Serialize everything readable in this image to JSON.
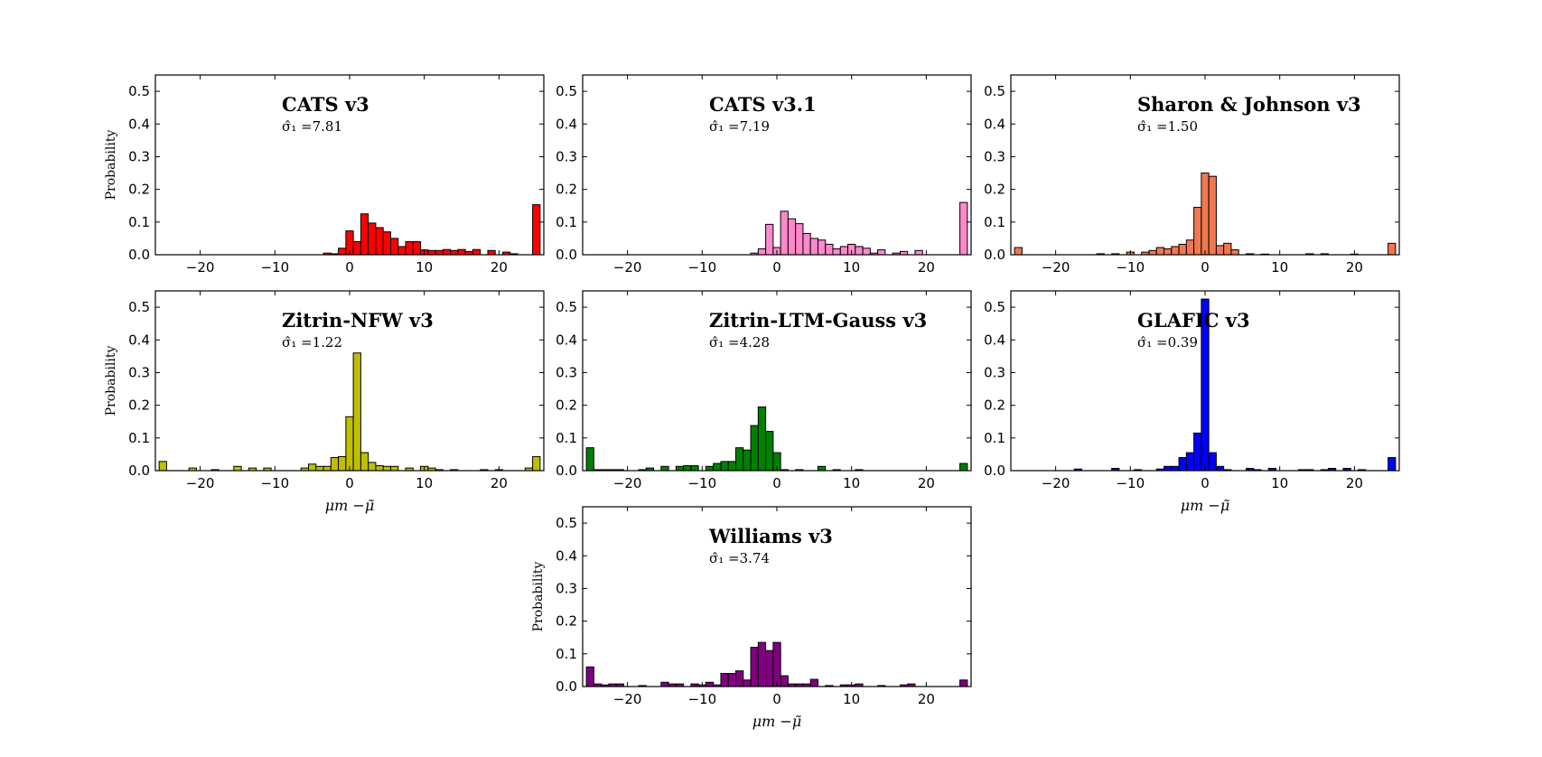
{
  "figure": {
    "background": "#ffffff"
  },
  "chart_data": [
    {
      "type": "bar",
      "title": "CATS v3",
      "annotation": "σ̂₁ =7.81",
      "ylabel": "Probability",
      "xlabel": "",
      "color": "#ff0000",
      "xlim": [
        -26,
        26
      ],
      "ylim": [
        0,
        0.55
      ],
      "xticks": [
        -20,
        -10,
        0,
        10,
        20
      ],
      "yticks": [
        0.0,
        0.1,
        0.2,
        0.3,
        0.4,
        0.5
      ],
      "bins": [
        {
          "x": -3,
          "y": 0.005
        },
        {
          "x": -2,
          "y": 0.003
        },
        {
          "x": -1,
          "y": 0.02
        },
        {
          "x": 0,
          "y": 0.073
        },
        {
          "x": 1,
          "y": 0.04
        },
        {
          "x": 2,
          "y": 0.125
        },
        {
          "x": 3,
          "y": 0.097
        },
        {
          "x": 4,
          "y": 0.083
        },
        {
          "x": 5,
          "y": 0.07
        },
        {
          "x": 6,
          "y": 0.05
        },
        {
          "x": 7,
          "y": 0.025
        },
        {
          "x": 8,
          "y": 0.04
        },
        {
          "x": 9,
          "y": 0.04
        },
        {
          "x": 10,
          "y": 0.015
        },
        {
          "x": 11,
          "y": 0.013
        },
        {
          "x": 12,
          "y": 0.013
        },
        {
          "x": 13,
          "y": 0.016
        },
        {
          "x": 14,
          "y": 0.013
        },
        {
          "x": 15,
          "y": 0.016
        },
        {
          "x": 16,
          "y": 0.01
        },
        {
          "x": 17,
          "y": 0.016
        },
        {
          "x": 19,
          "y": 0.013
        },
        {
          "x": 21,
          "y": 0.008
        },
        {
          "x": 22,
          "y": 0.003
        },
        {
          "x": 25,
          "y": 0.153
        }
      ]
    },
    {
      "type": "bar",
      "title": "CATS v3.1",
      "annotation": "σ̂₁ =7.19",
      "ylabel": "",
      "xlabel": "",
      "color": "#ff88cc",
      "xlim": [
        -26,
        26
      ],
      "ylim": [
        0,
        0.55
      ],
      "xticks": [
        -20,
        -10,
        0,
        10,
        20
      ],
      "yticks": [
        0.0,
        0.1,
        0.2,
        0.3,
        0.4,
        0.5
      ],
      "bins": [
        {
          "x": -3,
          "y": 0.005
        },
        {
          "x": -2,
          "y": 0.018
        },
        {
          "x": -1,
          "y": 0.093
        },
        {
          "x": 0,
          "y": 0.022
        },
        {
          "x": 1,
          "y": 0.133
        },
        {
          "x": 2,
          "y": 0.11
        },
        {
          "x": 3,
          "y": 0.095
        },
        {
          "x": 4,
          "y": 0.065
        },
        {
          "x": 5,
          "y": 0.05
        },
        {
          "x": 6,
          "y": 0.045
        },
        {
          "x": 7,
          "y": 0.032
        },
        {
          "x": 8,
          "y": 0.018
        },
        {
          "x": 9,
          "y": 0.025
        },
        {
          "x": 10,
          "y": 0.032
        },
        {
          "x": 11,
          "y": 0.025
        },
        {
          "x": 12,
          "y": 0.02
        },
        {
          "x": 13,
          "y": 0.005
        },
        {
          "x": 14,
          "y": 0.015
        },
        {
          "x": 16,
          "y": 0.005
        },
        {
          "x": 17,
          "y": 0.01
        },
        {
          "x": 19,
          "y": 0.013
        },
        {
          "x": 25,
          "y": 0.16
        }
      ]
    },
    {
      "type": "bar",
      "title": "Sharon & Johnson v3",
      "annotation": "σ̂₁ =1.50",
      "ylabel": "",
      "xlabel": "",
      "color": "#f07850",
      "xlim": [
        -26,
        26
      ],
      "ylim": [
        0,
        0.55
      ],
      "xticks": [
        -20,
        -10,
        0,
        10,
        20
      ],
      "yticks": [
        0.0,
        0.1,
        0.2,
        0.3,
        0.4,
        0.5
      ],
      "bins": [
        {
          "x": -25,
          "y": 0.022
        },
        {
          "x": -14,
          "y": 0.003
        },
        {
          "x": -12,
          "y": 0.003
        },
        {
          "x": -10,
          "y": 0.008
        },
        {
          "x": -8,
          "y": 0.008
        },
        {
          "x": -7,
          "y": 0.013
        },
        {
          "x": -6,
          "y": 0.022
        },
        {
          "x": -5,
          "y": 0.018
        },
        {
          "x": -4,
          "y": 0.025
        },
        {
          "x": -3,
          "y": 0.032
        },
        {
          "x": -2,
          "y": 0.045
        },
        {
          "x": -1,
          "y": 0.145
        },
        {
          "x": 0,
          "y": 0.25
        },
        {
          "x": 1,
          "y": 0.24
        },
        {
          "x": 2,
          "y": 0.028
        },
        {
          "x": 3,
          "y": 0.035
        },
        {
          "x": 4,
          "y": 0.015
        },
        {
          "x": 6,
          "y": 0.003
        },
        {
          "x": 8,
          "y": 0.002
        },
        {
          "x": 14,
          "y": 0.003
        },
        {
          "x": 16,
          "y": 0.003
        },
        {
          "x": 20,
          "y": 0.002
        },
        {
          "x": 25,
          "y": 0.035
        }
      ]
    },
    {
      "type": "bar",
      "title": "Zitrin-NFW v3",
      "annotation": "σ̂₁ =1.22",
      "ylabel": "Probability",
      "xlabel": "μm −μ̃",
      "color": "#bfbf00",
      "xlim": [
        -26,
        26
      ],
      "ylim": [
        0,
        0.55
      ],
      "xticks": [
        -20,
        -10,
        0,
        10,
        20
      ],
      "yticks": [
        0.0,
        0.1,
        0.2,
        0.3,
        0.4,
        0.5
      ],
      "bins": [
        {
          "x": -25,
          "y": 0.028
        },
        {
          "x": -21,
          "y": 0.008
        },
        {
          "x": -18,
          "y": 0.003
        },
        {
          "x": -15,
          "y": 0.013
        },
        {
          "x": -13,
          "y": 0.008
        },
        {
          "x": -11,
          "y": 0.008
        },
        {
          "x": -6,
          "y": 0.008
        },
        {
          "x": -5,
          "y": 0.02
        },
        {
          "x": -4,
          "y": 0.013
        },
        {
          "x": -3,
          "y": 0.013
        },
        {
          "x": -2,
          "y": 0.04
        },
        {
          "x": -1,
          "y": 0.043
        },
        {
          "x": 0,
          "y": 0.165
        },
        {
          "x": 1,
          "y": 0.36
        },
        {
          "x": 2,
          "y": 0.055
        },
        {
          "x": 3,
          "y": 0.025
        },
        {
          "x": 4,
          "y": 0.015
        },
        {
          "x": 5,
          "y": 0.013
        },
        {
          "x": 6,
          "y": 0.013
        },
        {
          "x": 8,
          "y": 0.008
        },
        {
          "x": 10,
          "y": 0.013
        },
        {
          "x": 11,
          "y": 0.008
        },
        {
          "x": 12,
          "y": 0.003
        },
        {
          "x": 14,
          "y": 0.003
        },
        {
          "x": 18,
          "y": 0.003
        },
        {
          "x": 20,
          "y": 0.003
        },
        {
          "x": 24,
          "y": 0.008
        },
        {
          "x": 25,
          "y": 0.043
        }
      ]
    },
    {
      "type": "bar",
      "title": "Zitrin-LTM-Gauss v3",
      "annotation": "σ̂₁ =4.28",
      "ylabel": "",
      "xlabel": "",
      "color": "#008000",
      "xlim": [
        -26,
        26
      ],
      "ylim": [
        0,
        0.55
      ],
      "xticks": [
        -20,
        -10,
        0,
        10,
        20
      ],
      "yticks": [
        0.0,
        0.1,
        0.2,
        0.3,
        0.4,
        0.5
      ],
      "bins": [
        {
          "x": -25,
          "y": 0.07
        },
        {
          "x": -24,
          "y": 0.003
        },
        {
          "x": -23,
          "y": 0.003
        },
        {
          "x": -22,
          "y": 0.003
        },
        {
          "x": -21,
          "y": 0.003
        },
        {
          "x": -18,
          "y": 0.003
        },
        {
          "x": -17,
          "y": 0.008
        },
        {
          "x": -15,
          "y": 0.013
        },
        {
          "x": -13,
          "y": 0.013
        },
        {
          "x": -12,
          "y": 0.015
        },
        {
          "x": -11,
          "y": 0.015
        },
        {
          "x": -9,
          "y": 0.013
        },
        {
          "x": -8,
          "y": 0.022
        },
        {
          "x": -7,
          "y": 0.028
        },
        {
          "x": -6,
          "y": 0.028
        },
        {
          "x": -5,
          "y": 0.07
        },
        {
          "x": -4,
          "y": 0.063
        },
        {
          "x": -3,
          "y": 0.138
        },
        {
          "x": -2,
          "y": 0.195
        },
        {
          "x": -1,
          "y": 0.12
        },
        {
          "x": 0,
          "y": 0.055
        },
        {
          "x": 1,
          "y": 0.003
        },
        {
          "x": 3,
          "y": 0.003
        },
        {
          "x": 6,
          "y": 0.013
        },
        {
          "x": 8,
          "y": 0.003
        },
        {
          "x": 11,
          "y": 0.003
        },
        {
          "x": 25,
          "y": 0.022
        }
      ]
    },
    {
      "type": "bar",
      "title": "GLAFIC v3",
      "annotation": "σ̂₁ =0.39",
      "ylabel": "",
      "xlabel": "μm −μ̃",
      "color": "#0000ff",
      "xlim": [
        -26,
        26
      ],
      "ylim": [
        0,
        0.55
      ],
      "xticks": [
        -20,
        -10,
        0,
        10,
        20
      ],
      "yticks": [
        0.0,
        0.1,
        0.2,
        0.3,
        0.4,
        0.5
      ],
      "bins": [
        {
          "x": -17,
          "y": 0.005
        },
        {
          "x": -12,
          "y": 0.007
        },
        {
          "x": -9,
          "y": 0.003
        },
        {
          "x": -6,
          "y": 0.005
        },
        {
          "x": -5,
          "y": 0.013
        },
        {
          "x": -4,
          "y": 0.013
        },
        {
          "x": -3,
          "y": 0.04
        },
        {
          "x": -2,
          "y": 0.055
        },
        {
          "x": -1,
          "y": 0.115
        },
        {
          "x": 0,
          "y": 0.525
        },
        {
          "x": 1,
          "y": 0.055
        },
        {
          "x": 2,
          "y": 0.013
        },
        {
          "x": 3,
          "y": 0.003
        },
        {
          "x": 6,
          "y": 0.007
        },
        {
          "x": 7,
          "y": 0.003
        },
        {
          "x": 9,
          "y": 0.007
        },
        {
          "x": 13,
          "y": 0.003
        },
        {
          "x": 14,
          "y": 0.003
        },
        {
          "x": 16,
          "y": 0.003
        },
        {
          "x": 17,
          "y": 0.007
        },
        {
          "x": 19,
          "y": 0.007
        },
        {
          "x": 21,
          "y": 0.003
        },
        {
          "x": 25,
          "y": 0.04
        }
      ]
    },
    {
      "type": "bar",
      "title": "Williams v3",
      "annotation": "σ̂₁ =3.74",
      "ylabel": "Probability",
      "xlabel": "μm −μ̃",
      "color": "#800080",
      "xlim": [
        -26,
        26
      ],
      "ylim": [
        0,
        0.55
      ],
      "xticks": [
        -20,
        -10,
        0,
        10,
        20
      ],
      "yticks": [
        0.0,
        0.1,
        0.2,
        0.3,
        0.4,
        0.5
      ],
      "bins": [
        {
          "x": -25,
          "y": 0.06
        },
        {
          "x": -24,
          "y": 0.008
        },
        {
          "x": -23,
          "y": 0.005
        },
        {
          "x": -22,
          "y": 0.008
        },
        {
          "x": -21,
          "y": 0.008
        },
        {
          "x": -18,
          "y": 0.003
        },
        {
          "x": -15,
          "y": 0.013
        },
        {
          "x": -14,
          "y": 0.008
        },
        {
          "x": -13,
          "y": 0.008
        },
        {
          "x": -11,
          "y": 0.008
        },
        {
          "x": -10,
          "y": 0.005
        },
        {
          "x": -9,
          "y": 0.013
        },
        {
          "x": -8,
          "y": 0.005
        },
        {
          "x": -7,
          "y": 0.04
        },
        {
          "x": -6,
          "y": 0.04
        },
        {
          "x": -5,
          "y": 0.048
        },
        {
          "x": -4,
          "y": 0.02
        },
        {
          "x": -3,
          "y": 0.12
        },
        {
          "x": -2,
          "y": 0.135
        },
        {
          "x": -1,
          "y": 0.11
        },
        {
          "x": 0,
          "y": 0.135
        },
        {
          "x": 1,
          "y": 0.033
        },
        {
          "x": 2,
          "y": 0.008
        },
        {
          "x": 3,
          "y": 0.008
        },
        {
          "x": 4,
          "y": 0.008
        },
        {
          "x": 5,
          "y": 0.022
        },
        {
          "x": 7,
          "y": 0.003
        },
        {
          "x": 9,
          "y": 0.005
        },
        {
          "x": 10,
          "y": 0.005
        },
        {
          "x": 11,
          "y": 0.008
        },
        {
          "x": 14,
          "y": 0.003
        },
        {
          "x": 17,
          "y": 0.005
        },
        {
          "x": 18,
          "y": 0.008
        },
        {
          "x": 25,
          "y": 0.02
        }
      ]
    }
  ]
}
